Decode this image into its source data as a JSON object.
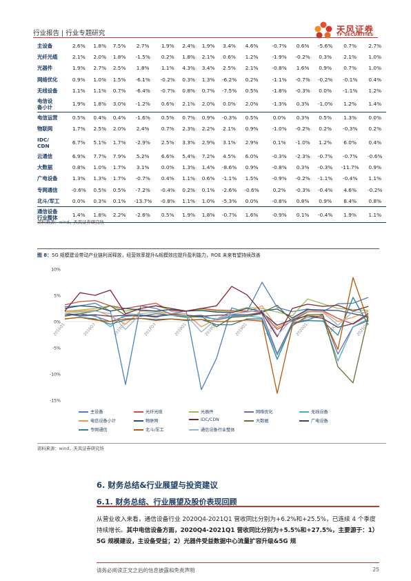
{
  "header": {
    "title": "行业报告 | 行业专题研究",
    "logo_name": "天风证券",
    "logo_sub": "TF SECURITIES",
    "brand_color": "#c0392b"
  },
  "table": {
    "rows": [
      {
        "label": "主设备",
        "values": [
          "2.6%",
          "1.8%",
          "7.5%",
          "2.7%",
          "1.9%",
          "2.4%",
          "1.9%",
          "3.4%",
          "4.6%",
          "-0.7%",
          "0.6%",
          "-5.6%",
          "0.7%",
          "2.7%"
        ]
      },
      {
        "label": "光纤光缆",
        "values": [
          "2.1%",
          "2.0%",
          "1.8%",
          "-1.5%",
          "0.2%",
          "1.8%",
          "2.1%",
          "0.6%",
          "1.2%",
          "-1.9%",
          "-0.2%",
          "0.3%",
          "2.1%",
          "1.0%"
        ]
      },
      {
        "label": "光器件",
        "values": [
          "1.9%",
          "2.7%",
          "2.5%",
          "1.8%",
          "1.1%",
          "4.3%",
          "3.4%",
          "2.5%",
          "2.1%",
          "-0.8%",
          "1.6%",
          "0.9%",
          "0.7%",
          "1.0%"
        ]
      },
      {
        "label": "网络优化",
        "values": [
          "0.9%",
          "1.0%",
          "1.5%",
          "-6.1%",
          "-0.2%",
          "0.3%",
          "1.3%",
          "-6.2%",
          "0.2%",
          "-1.1%",
          "-0.7%",
          "-0.2%",
          "-0.1%",
          "0.4%"
        ]
      },
      {
        "label": "无线设备",
        "values": [
          "1.1%",
          "1.1%",
          "0.7%",
          "-6.4%",
          "-0.7%",
          "0.8%",
          "0.7%",
          "-7.5%",
          "0.5%",
          "-1.8%",
          "-0.3%",
          "0.0%",
          "-1.1%",
          "1.2%"
        ]
      },
      {
        "label": "电信设备小计",
        "values": [
          "1.9%",
          "1.8%",
          "3.0%",
          "-1.2%",
          "0.6%",
          "2.1%",
          "2.0%",
          "0.0%",
          "2.0%",
          "-1.3%",
          "0.3%",
          "-1.0%",
          "1.2%",
          "1.4%"
        ]
      },
      {
        "label": "电信运营",
        "values": [
          "0.5%",
          "0.4%",
          "0.4%",
          "-1.6%",
          "0.5%",
          "0.7%",
          "0.9%",
          "-0.3%",
          "0.5%",
          "0.0%",
          "0.3%",
          "0.5%",
          "1.3%",
          "0.0%"
        ]
      },
      {
        "label": "物联网",
        "values": [
          "1.7%",
          "2.5%",
          "2.0%",
          "2.4%",
          "0.7%",
          "2.3%",
          "2.2%",
          "2.1%",
          "0.9%",
          "-1.0%",
          "-0.2%",
          "0.2%",
          "-0.3%",
          "0.2%"
        ]
      },
      {
        "label": "IDC/CDN",
        "values": [
          "6.7%",
          "5.1%",
          "1.7%",
          "-2.9%",
          "2.5%",
          "3.3%",
          "2.9%",
          "3.1%",
          "2.9%",
          "0.1%",
          "-1.0%",
          "1.2%",
          "6.0%",
          "0.4%"
        ]
      },
      {
        "label": "云通信",
        "values": [
          "6.9%",
          "7.7%",
          "7.9%",
          "5.2%",
          "6.6%",
          "5.4%",
          "7.2%",
          "4.5%",
          "6.0%",
          "-0.3%",
          "-2.3%",
          "-0.7%",
          "-0.7%",
          "-0.6%"
        ]
      },
      {
        "label": "大数据",
        "values": [
          "0.8%",
          "1.0%",
          "1.7%",
          "3.1%",
          "0.0%",
          "1.3%",
          "1.4%",
          "-8.6%",
          "0.9%",
          "-0.8%",
          "0.3%",
          "-0.3%",
          "-11.7%",
          "0.9%"
        ]
      },
      {
        "label": "广电设备",
        "values": [
          "1.3%",
          "1.3%",
          "1.7%",
          "-0.7%",
          "0.4%",
          "1.1%",
          "0.6%",
          "-1.1%",
          "1.5%",
          "-0.9%",
          "-0.2%",
          "-1.1%",
          "-0.4%",
          "1.1%"
        ]
      },
      {
        "label": "专网通信",
        "values": [
          "-0.6%",
          "0.5%",
          "0.5%",
          "-7.2%",
          "-0.4%",
          "0.2%",
          "0.1%",
          "-2.6%",
          "-0.6%",
          "0.2%",
          "-0.3%",
          "-0.4%",
          "4.6%",
          "-0.2%"
        ]
      },
      {
        "label": "北斗/军工",
        "values": [
          "0.0%",
          "0.3%",
          "0.1%",
          "-13.7%",
          "-0.8%",
          "1.1%",
          "1.0%",
          "-5.3%",
          "0.0%",
          "-0.8%",
          "0.8%",
          "0.9%",
          "8.4%",
          "0.8%"
        ]
      },
      {
        "label": "通信设备行业整体",
        "values": [
          "1.4%",
          "1.8%",
          "2.2%",
          "-2.6%",
          "0.5%",
          "1.9%",
          "1.8%",
          "-0.7%",
          "1.6%",
          "-0.9%",
          "0.1%",
          "-0.4%",
          "1.9%",
          "1.1%"
        ]
      }
    ],
    "source": "资料来源：wind，天风证券研究所"
  },
  "figure": {
    "label": "图 8：",
    "title": "5G 规模建设带动产业链利润释放，经营效率提升&规模效应提升盈利能力，ROE 未来有望持续改善",
    "source": "资料来源：wind，天风证券研究所"
  },
  "chart_data": {
    "type": "line",
    "x": [
      "2016Q1",
      "2016Q2",
      "2016Q3",
      "2016Q4",
      "2017Q1",
      "2017Q2",
      "2017Q3",
      "2017Q4",
      "2018Q1",
      "2018Q2",
      "2018Q3",
      "2018Q4",
      "2019Q1",
      "2019Q2",
      "2019Q3",
      "2019Q4",
      "2020Q1",
      "2020Q2",
      "2020Q3",
      "2020Q4",
      "2021Q1"
    ],
    "x_tick_labels": [
      "2016Q1",
      "2016Q3",
      "2017Q1",
      "2017Q3",
      "2018Q1",
      "2018Q3",
      "2019Q1",
      "2019Q3",
      "2020Q1",
      "2020Q3",
      "2021Q1"
    ],
    "y_ticks": [
      "10%",
      "5%",
      "0%",
      "-5%",
      "-10%",
      "-15%"
    ],
    "ylim": [
      -15,
      10
    ],
    "y_unit": "%",
    "series": [
      {
        "name": "主设备",
        "color": "#4a7fc1",
        "values": [
          2.8,
          3.0,
          3.5,
          2.0,
          -12.0,
          3.0,
          2.5,
          1.5,
          2.0,
          -13.0,
          -7.0,
          2.6,
          1.8,
          7.5,
          2.7,
          1.9,
          2.4,
          1.9,
          3.4,
          3.5,
          4.6
        ]
      },
      {
        "name": "光纤光缆",
        "color": "#c0504d",
        "values": [
          3.2,
          3.8,
          4.0,
          3.0,
          2.5,
          3.0,
          3.5,
          2.0,
          2.0,
          2.5,
          2.2,
          2.1,
          2.0,
          1.8,
          -1.5,
          0.2,
          1.8,
          2.1,
          0.6,
          -0.5,
          1.2
        ]
      },
      {
        "name": "光器件",
        "color": "#9bbb59",
        "values": [
          2.0,
          2.2,
          2.5,
          3.0,
          2.0,
          2.5,
          3.0,
          2.2,
          2.0,
          2.3,
          2.0,
          1.9,
          2.7,
          2.5,
          1.8,
          1.1,
          4.3,
          3.4,
          2.5,
          2.3,
          2.1
        ]
      },
      {
        "name": "网络优化",
        "color": "#8064a2",
        "values": [
          1.2,
          1.5,
          1.0,
          0.0,
          1.0,
          1.2,
          0.8,
          1.5,
          1.0,
          1.2,
          0.3,
          0.9,
          1.0,
          1.5,
          -6.1,
          -0.2,
          0.3,
          1.3,
          -6.2,
          -1.0,
          0.2
        ]
      },
      {
        "name": "无线设备",
        "color": "#4bacc6",
        "values": [
          1.5,
          1.0,
          1.2,
          -1.0,
          1.5,
          1.3,
          1.0,
          1.2,
          1.0,
          0.8,
          0.5,
          1.1,
          1.1,
          0.7,
          -6.4,
          -0.7,
          0.8,
          0.7,
          -7.5,
          -1.0,
          0.5
        ]
      },
      {
        "name": "电信设备小计",
        "color": "#f79646",
        "values": [
          1.8,
          2.0,
          2.2,
          1.0,
          -0.5,
          2.0,
          2.0,
          1.5,
          1.5,
          -1.0,
          0.5,
          1.9,
          1.8,
          3.0,
          -1.2,
          0.6,
          2.1,
          2.0,
          0.0,
          0.8,
          2.0
        ]
      },
      {
        "name": "物联网",
        "color": "#2c4d75",
        "values": [
          2.5,
          3.0,
          2.8,
          2.0,
          2.5,
          2.2,
          2.0,
          2.3,
          2.0,
          2.1,
          1.8,
          1.7,
          2.5,
          2.0,
          2.4,
          0.7,
          2.3,
          2.2,
          2.1,
          1.5,
          0.9
        ]
      },
      {
        "name": "IDC/CDN",
        "color": "#7f2430",
        "values": [
          2.0,
          5.5,
          5.0,
          6.0,
          1.5,
          2.5,
          3.0,
          2.5,
          2.0,
          2.5,
          3.0,
          6.7,
          5.1,
          1.7,
          -2.9,
          2.5,
          3.3,
          2.9,
          3.1,
          2.0,
          2.9
        ]
      },
      {
        "name": "大数据",
        "color": "#5f7530",
        "values": [
          1.0,
          1.5,
          2.0,
          3.0,
          1.2,
          1.0,
          1.5,
          1.2,
          0.8,
          1.0,
          -1.0,
          0.8,
          1.0,
          1.7,
          3.1,
          0.0,
          1.3,
          1.4,
          -8.6,
          -11.7,
          0.9
        ]
      },
      {
        "name": "广电设备",
        "color": "#4d3b62",
        "values": [
          1.5,
          1.2,
          1.3,
          1.0,
          1.2,
          1.1,
          1.0,
          1.4,
          1.2,
          1.0,
          1.2,
          1.3,
          1.3,
          1.7,
          -0.7,
          0.4,
          1.1,
          0.6,
          -1.1,
          -0.4,
          1.5
        ]
      },
      {
        "name": "专网通信",
        "color": "#2e7f90",
        "values": [
          0.5,
          0.8,
          0.5,
          -0.5,
          0.3,
          0.6,
          0.4,
          0.5,
          0.2,
          0.4,
          -0.6,
          -0.6,
          0.5,
          0.5,
          -7.2,
          -0.4,
          0.2,
          0.1,
          -2.6,
          4.6,
          -0.6
        ]
      },
      {
        "name": "北斗/军工",
        "color": "#b65708",
        "values": [
          0.5,
          0.8,
          0.3,
          0.0,
          0.5,
          0.6,
          0.2,
          0.5,
          0.3,
          0.4,
          0.0,
          0.0,
          0.3,
          0.1,
          -13.7,
          -0.8,
          1.1,
          1.0,
          -5.3,
          8.4,
          0.0
        ]
      },
      {
        "name": "通信设备行业整体",
        "color": "#95b3d7",
        "values": [
          1.5,
          1.8,
          2.0,
          1.5,
          -1.5,
          1.5,
          1.8,
          1.2,
          1.2,
          -2.0,
          0.5,
          1.4,
          1.8,
          2.2,
          -2.6,
          0.5,
          1.9,
          1.8,
          -0.7,
          1.9,
          1.6
        ]
      }
    ]
  },
  "section": {
    "title": "6. 财务总结&行业展望与投资建议",
    "subtitle": "6.1. 财务总结、行业展望及股价表现回顾",
    "para_part1": "从营业收入来看，通信设备行业 2020Q4-2021Q1 营收同比分别为+6.2%和+25.5%，已连续 4 个季度持续增长。",
    "para_part2": "其中电信设备方面，2020Q4-2021Q1 营收同比分别为+5.5%和+27.5%，主要源于：1）5G 规模建设，主设备受益；2）光器件受益数据中心流量扩容升级&5G 规"
  },
  "footer": {
    "disclaimer": "请务必阅读正文之后的信息披露和免责声明",
    "page": "25"
  }
}
